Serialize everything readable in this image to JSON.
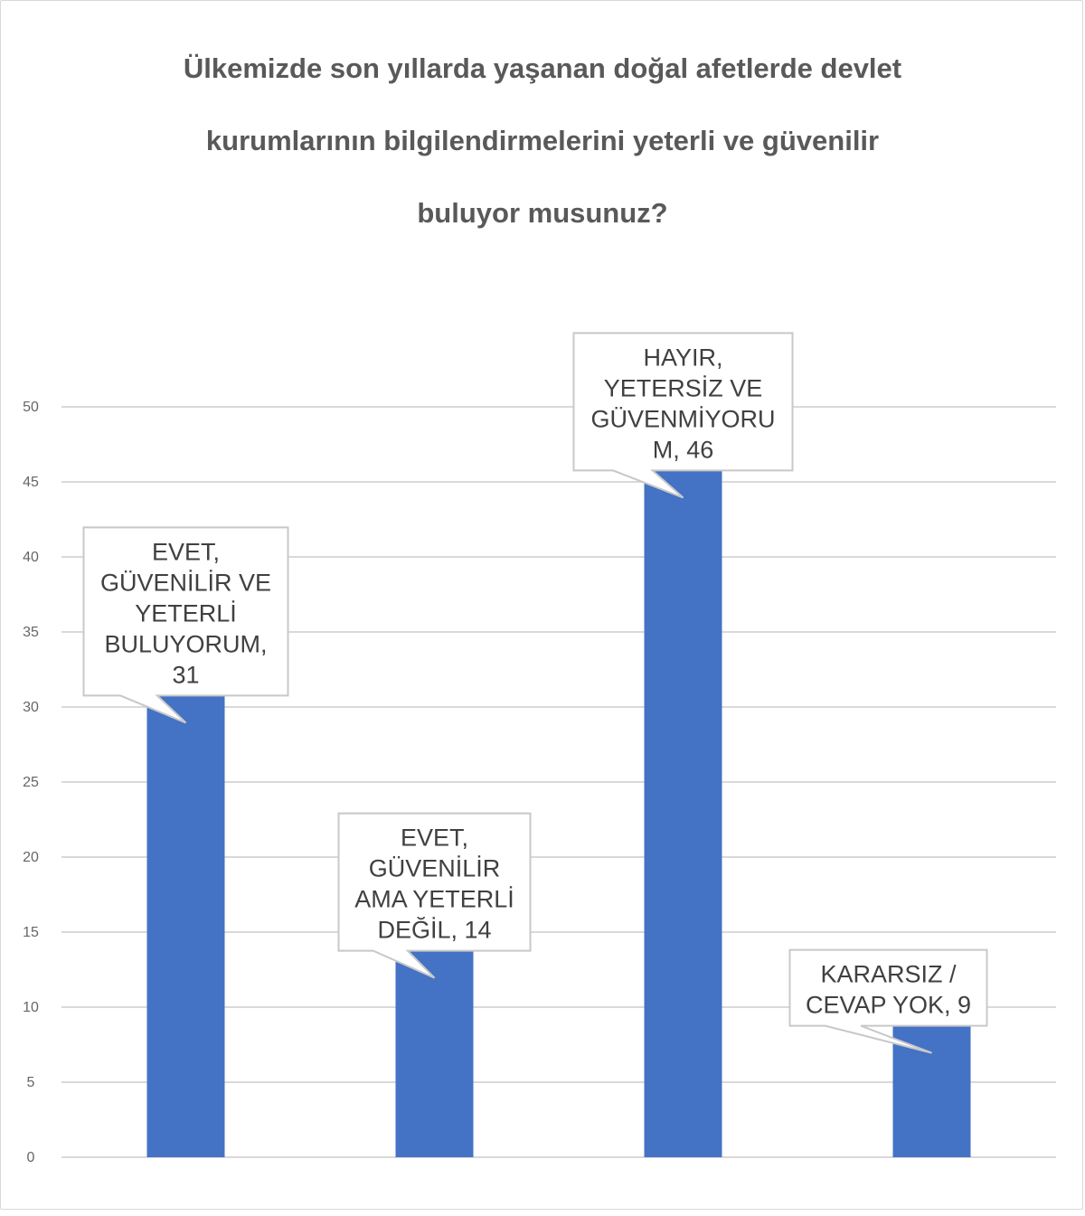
{
  "chart_data": {
    "type": "bar",
    "title": "Ülkemizde son yıllarda yaşanan doğal afetlerde devlet kurumlarının bilgilendirmelerini yeterli ve güvenilir buluyor musunuz?",
    "title_lines": [
      "Ülkemizde son yıllarda yaşanan doğal afetlerde devlet",
      "kurumlarının bilgilendirmelerini yeterli ve güvenilir",
      "buluyor musunuz?"
    ],
    "categories": [
      "EVET, GÜVENİLİR VE YETERLİ BULUYORUM",
      "EVET, GÜVENİLİR AMA YETERLİ DEĞİL",
      "HAYIR, YETERSİZ VE GÜVENMİYORUM",
      "KARARSIZ / CEVAP YOK"
    ],
    "values": [
      31,
      14,
      46,
      9
    ],
    "data_labels": [
      [
        "EVET,",
        "GÜVENİLİR VE",
        "YETERLİ",
        "BULUYORUM,",
        "31"
      ],
      [
        "EVET,",
        "GÜVENİLİR",
        "AMA YETERLİ",
        "DEĞİL, 14"
      ],
      [
        "HAYIR,",
        "YETERSİZ VE",
        "GÜVENMİYORU",
        "M, 46"
      ],
      [
        "KARARSIZ /",
        "CEVAP YOK, 9"
      ]
    ],
    "yticks": [
      0,
      5,
      10,
      15,
      20,
      25,
      30,
      35,
      40,
      45,
      50
    ],
    "ylim": [
      0,
      50
    ],
    "xlabel": "",
    "ylabel": "",
    "grid": true,
    "legend": "none",
    "bar_color": "#4472c4",
    "grid_color": "#d9d9d9"
  }
}
